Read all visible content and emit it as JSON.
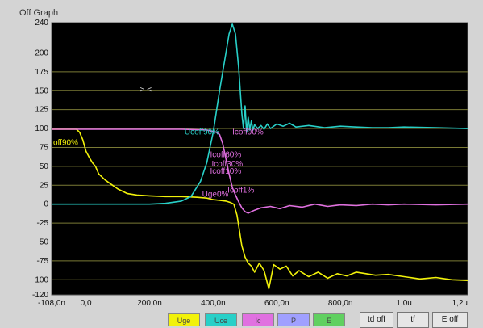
{
  "window": {
    "title": "Off Graph"
  },
  "chart_data": {
    "type": "line",
    "xlim": [
      -108,
      1200
    ],
    "ylim": [
      -120,
      240
    ],
    "xticks": [
      {
        "value": -108,
        "label": "-108,0n"
      },
      {
        "value": 0,
        "label": "0,0"
      },
      {
        "value": 200,
        "label": "200,0n"
      },
      {
        "value": 400,
        "label": "400,0n"
      },
      {
        "value": 600,
        "label": "600,0n"
      },
      {
        "value": 800,
        "label": "800,0n"
      },
      {
        "value": 1000,
        "label": "1,0u"
      },
      {
        "value": 1200,
        "label": "1,2u"
      }
    ],
    "yticks": [
      240,
      200,
      175,
      150,
      125,
      100,
      75,
      50,
      25,
      0,
      -25,
      -50,
      -75,
      -100,
      -120
    ],
    "grid": true,
    "background": "#000000",
    "gridColor": "#7a7a35",
    "series": [
      {
        "name": "Uge",
        "color": "#f2f20a",
        "x": [
          -108,
          -30,
          -20,
          -10,
          0,
          10,
          20,
          30,
          40,
          60,
          80,
          100,
          130,
          160,
          200,
          250,
          300,
          350,
          380,
          400,
          420,
          440,
          455,
          465,
          475,
          490,
          500,
          510,
          520,
          530,
          545,
          560,
          575,
          590,
          610,
          630,
          650,
          670,
          700,
          730,
          760,
          790,
          820,
          850,
          880,
          910,
          950,
          1000,
          1050,
          1100,
          1150,
          1200
        ],
        "y": [
          99,
          99,
          95,
          85,
          70,
          62,
          55,
          50,
          40,
          32,
          26,
          20,
          14,
          12,
          11,
          10,
          10,
          9,
          8,
          6,
          5,
          4,
          2,
          0,
          -15,
          -55,
          -70,
          -78,
          -82,
          -90,
          -78,
          -88,
          -112,
          -80,
          -86,
          -82,
          -95,
          -88,
          -96,
          -90,
          -98,
          -92,
          -95,
          -90,
          -92,
          -94,
          -93,
          -96,
          -99,
          -97,
          -100,
          -101
        ]
      },
      {
        "name": "Uce",
        "color": "#28d0c8",
        "x": [
          -108,
          0,
          100,
          200,
          250,
          300,
          330,
          360,
          380,
          400,
          420,
          440,
          450,
          460,
          470,
          480,
          490,
          495,
          500,
          505,
          510,
          515,
          520,
          525,
          530,
          540,
          550,
          560,
          570,
          580,
          600,
          620,
          640,
          660,
          700,
          750,
          800,
          850,
          900,
          950,
          1000,
          1100,
          1200
        ],
        "y": [
          0,
          0,
          0,
          0,
          1,
          4,
          10,
          30,
          55,
          95,
          150,
          200,
          225,
          238,
          225,
          180,
          120,
          100,
          130,
          95,
          115,
          98,
          110,
          98,
          105,
          100,
          104,
          99,
          106,
          100,
          106,
          103,
          107,
          102,
          104,
          101,
          103,
          102,
          101,
          101,
          102,
          101,
          100
        ]
      },
      {
        "name": "Ic",
        "color": "#e070e0",
        "x": [
          -108,
          0,
          100,
          200,
          300,
          380,
          400,
          410,
          420,
          430,
          440,
          450,
          460,
          470,
          480,
          490,
          500,
          510,
          520,
          530,
          550,
          580,
          610,
          640,
          680,
          720,
          760,
          800,
          850,
          900,
          950,
          1000,
          1100,
          1200
        ],
        "y": [
          99,
          99,
          99,
          99,
          99,
          98,
          96,
          95,
          92,
          80,
          60,
          40,
          22,
          12,
          3,
          -5,
          -10,
          -12,
          -10,
          -8,
          -5,
          -3,
          -6,
          -2,
          -4,
          0,
          -3,
          -1,
          -2,
          0,
          -1,
          0,
          -1,
          0
        ]
      }
    ],
    "legend": [
      "Uge",
      "Uce",
      "Ic",
      "P",
      "E"
    ],
    "annotations": [
      {
        "text": "Ucoff90%",
        "x": 305,
        "y": 92,
        "color": "#28d0c8"
      },
      {
        "text": "Icoff90%",
        "x": 455,
        "y": 92,
        "color": "#e070e0"
      },
      {
        "text": "Icoff60%",
        "x": 385,
        "y": 62,
        "color": "#e070e0"
      },
      {
        "text": "Icoff30%",
        "x": 390,
        "y": 50,
        "color": "#e070e0"
      },
      {
        "text": "Icoff10%",
        "x": 385,
        "y": 40,
        "color": "#e070e0"
      },
      {
        "text": "Icoff1%",
        "x": 440,
        "y": 15,
        "color": "#e070e0"
      },
      {
        "text": "Uge0%",
        "x": 360,
        "y": 10,
        "color": "#e070e0"
      },
      {
        "text": "off90%",
        "x": -108,
        "y": 78,
        "color": "#f2f20a"
      }
    ]
  },
  "legend_buttons": [
    {
      "label": "Uge",
      "color": "#f2f20a"
    },
    {
      "label": "Uce",
      "color": "#28d0c8"
    },
    {
      "label": "Ic",
      "color": "#e070e0"
    },
    {
      "label": "P",
      "color": "#a0a0ff"
    },
    {
      "label": "E",
      "color": "#60d060"
    }
  ],
  "tool_buttons": [
    {
      "label": "td off"
    },
    {
      "label": "tf"
    },
    {
      "label": "E off"
    }
  ]
}
